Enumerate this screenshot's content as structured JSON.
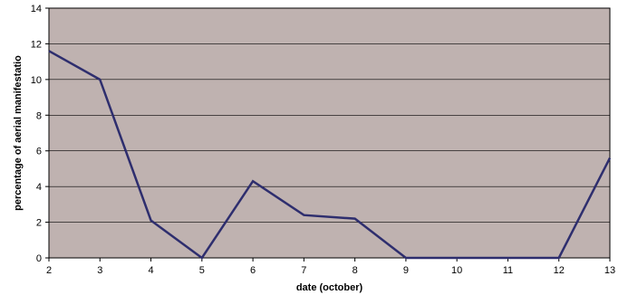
{
  "chart_data": {
    "type": "line",
    "title": "",
    "xlabel": "date (october)",
    "ylabel": "percentage of aerial manifestatio",
    "x": [
      2,
      3,
      4,
      5,
      6,
      7,
      8,
      9,
      10,
      11,
      12,
      13
    ],
    "series": [
      {
        "values": [
          11.6,
          10.0,
          2.1,
          0.0,
          4.3,
          2.4,
          2.2,
          0.0,
          0.0,
          0.0,
          0.0,
          5.6
        ],
        "color": "#2e2e6e"
      }
    ],
    "xlim": [
      2,
      13
    ],
    "ylim": [
      0,
      14
    ],
    "yticks": [
      0,
      2,
      4,
      6,
      8,
      10,
      12,
      14
    ],
    "xticks": [
      2,
      3,
      4,
      5,
      6,
      7,
      8,
      9,
      10,
      11,
      12,
      13
    ],
    "grid": "horizontal",
    "legend": "none",
    "colors": {
      "plot_background": "#bfb2b0",
      "gridline": "#000000",
      "line": "#2e2e6e"
    }
  }
}
